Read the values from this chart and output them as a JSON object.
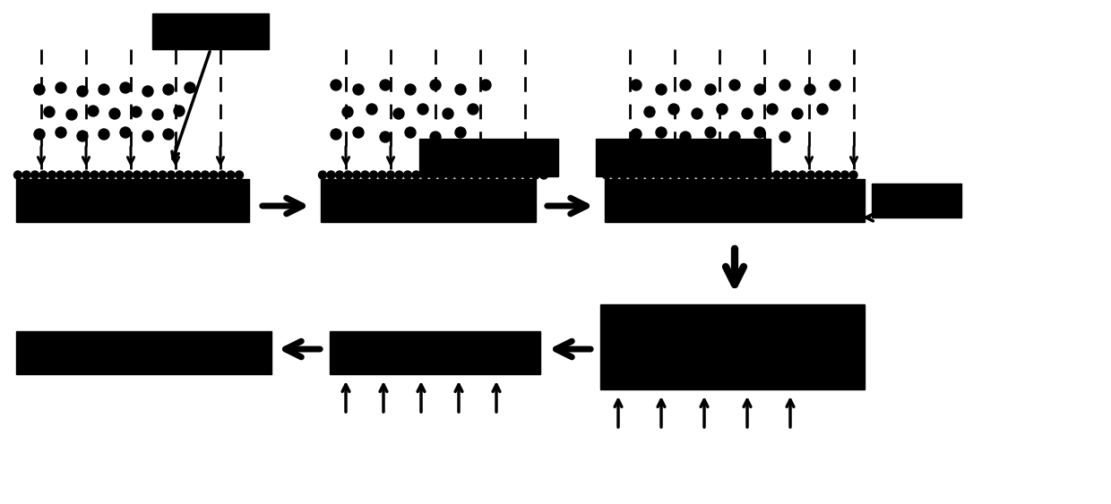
{
  "bg_color": "#ffffff",
  "black": "#000000",
  "fig_width": 12.4,
  "fig_height": 5.63,
  "dpi": 100
}
